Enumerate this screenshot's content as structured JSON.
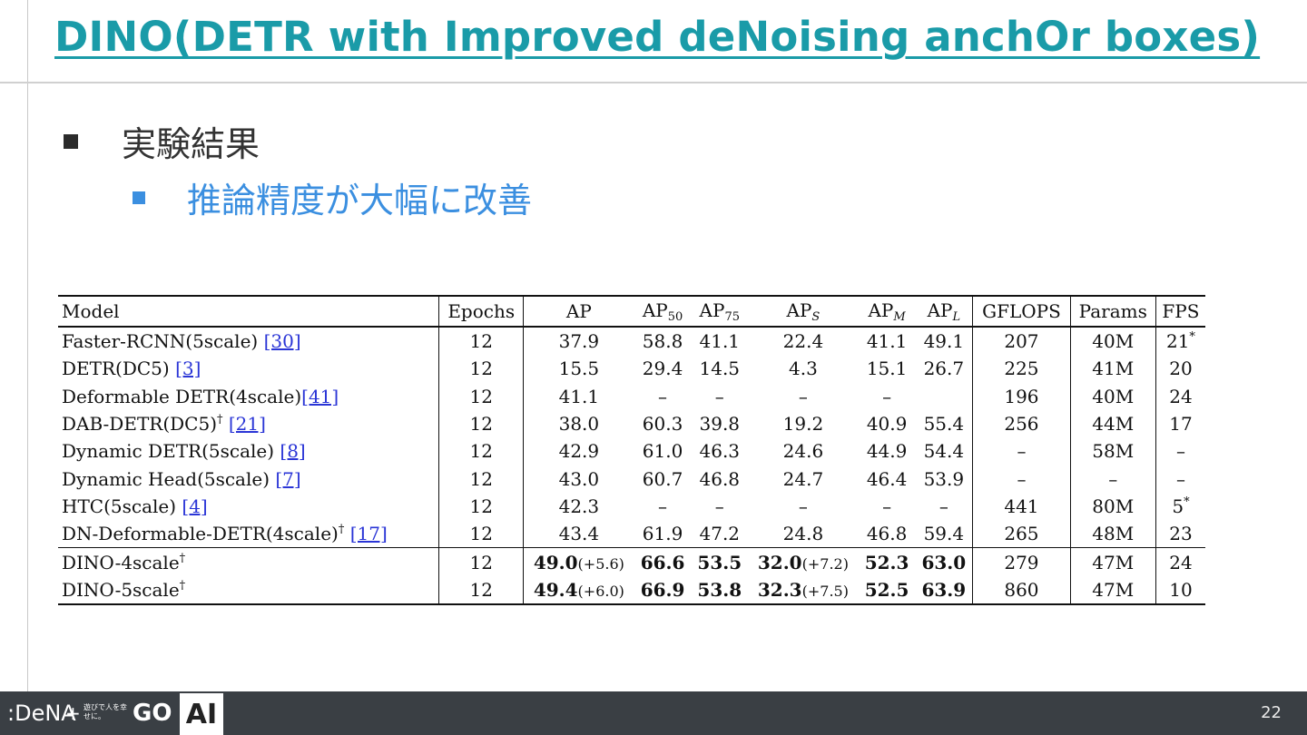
{
  "title": "DINO(DETR with Improved deNoising anchOr boxes)",
  "bullet_level1": "実験結果",
  "bullet_level2": "推論精度が大幅に改善",
  "table": {
    "headers": {
      "model": "Model",
      "epochs": "Epochs",
      "ap": "AP",
      "ap50_base": "AP",
      "ap50_sub": "50",
      "ap75_base": "AP",
      "ap75_sub": "75",
      "aps_base": "AP",
      "aps_sub": "S",
      "apm_base": "AP",
      "apm_sub": "M",
      "apl_base": "AP",
      "apl_sub": "L",
      "gflops": "GFLOPS",
      "params": "Params",
      "fps": "FPS"
    },
    "rows": [
      {
        "model": "Faster-RCNN(5scale) ",
        "ref": "[30]",
        "dagger": "",
        "epochs": "12",
        "ap": "37.9",
        "ap50": "58.8",
        "ap75": "41.1",
        "aps": "22.4",
        "apm": "41.1",
        "apl": "49.1",
        "gflops": "207",
        "params": "40M",
        "fps": "21",
        "fps_sup": "*"
      },
      {
        "model": "DETR(DC5) ",
        "ref": "[3]",
        "dagger": "",
        "epochs": "12",
        "ap": "15.5",
        "ap50": "29.4",
        "ap75": "14.5",
        "aps": "4.3",
        "apm": "15.1",
        "apl": "26.7",
        "gflops": "225",
        "params": "41M",
        "fps": "20",
        "fps_sup": ""
      },
      {
        "model": "Deformable DETR(4scale)",
        "ref": "[41]",
        "dagger": "",
        "epochs": "12",
        "ap": "41.1",
        "ap50": "–",
        "ap75": "–",
        "aps": "–",
        "apm": "–",
        "apl": "",
        "gflops": "196",
        "params": "40M",
        "fps": "24",
        "fps_sup": ""
      },
      {
        "model": "DAB-DETR(DC5)",
        "ref": "[21]",
        "dagger": "†",
        "epochs": "12",
        "ap": "38.0",
        "ap50": "60.3",
        "ap75": "39.8",
        "aps": "19.2",
        "apm": "40.9",
        "apl": "55.4",
        "gflops": "256",
        "params": "44M",
        "fps": "17",
        "fps_sup": ""
      },
      {
        "model": "Dynamic DETR(5scale) ",
        "ref": "[8]",
        "dagger": "",
        "epochs": "12",
        "ap": "42.9",
        "ap50": "61.0",
        "ap75": "46.3",
        "aps": "24.6",
        "apm": "44.9",
        "apl": "54.4",
        "gflops": "–",
        "params": "58M",
        "fps": "–",
        "fps_sup": ""
      },
      {
        "model": "Dynamic Head(5scale) ",
        "ref": "[7]",
        "dagger": "",
        "epochs": "12",
        "ap": "43.0",
        "ap50": "60.7",
        "ap75": "46.8",
        "aps": "24.7",
        "apm": "46.4",
        "apl": "53.9",
        "gflops": "–",
        "params": "–",
        "fps": "–",
        "fps_sup": ""
      },
      {
        "model": "HTC(5scale) ",
        "ref": "[4]",
        "dagger": "",
        "epochs": "12",
        "ap": "42.3",
        "ap50": "–",
        "ap75": "–",
        "aps": "–",
        "apm": "–",
        "apl": "–",
        "gflops": "441",
        "params": "80M",
        "fps": "5",
        "fps_sup": "*"
      },
      {
        "model": "DN-Deformable-DETR(4scale)",
        "ref": "[17]",
        "dagger": "†",
        "epochs": "12",
        "ap": "43.4",
        "ap50": "61.9",
        "ap75": "47.2",
        "aps": "24.8",
        "apm": "46.8",
        "apl": "59.4",
        "gflops": "265",
        "params": "48M",
        "fps": "23",
        "fps_sup": ""
      }
    ],
    "dino_rows": [
      {
        "model": "DINO-4scale",
        "dagger": "†",
        "epochs": "12",
        "ap": "49.0",
        "ap_delta": "(+5.6)",
        "ap50": "66.6",
        "ap75": "53.5",
        "aps": "32.0",
        "aps_delta": "(+7.2)",
        "apm": "52.3",
        "apl": "63.0",
        "gflops": "279",
        "params": "47M",
        "fps": "24"
      },
      {
        "model": "DINO-5scale",
        "dagger": "†",
        "epochs": "12",
        "ap": "49.4",
        "ap_delta": "(+6.0)",
        "ap50": "66.9",
        "ap75": "53.8",
        "aps": "32.3",
        "aps_delta": "(+7.5)",
        "apm": "52.5",
        "apl": "63.9",
        "gflops": "860",
        "params": "47M",
        "fps": "10"
      }
    ]
  },
  "footer": {
    "logo_dena": ":DeNA",
    "logo_plus": "+",
    "logo_jp": "遊びで人を幸せに。",
    "logo_go": "GO",
    "ai_label": "AI",
    "page_number": "22"
  },
  "colors": {
    "title": "#1a9ba8",
    "bullet2": "#3b8fe0",
    "footer_bg": "#3a3f44",
    "ref_link": "#2a35d6"
  }
}
